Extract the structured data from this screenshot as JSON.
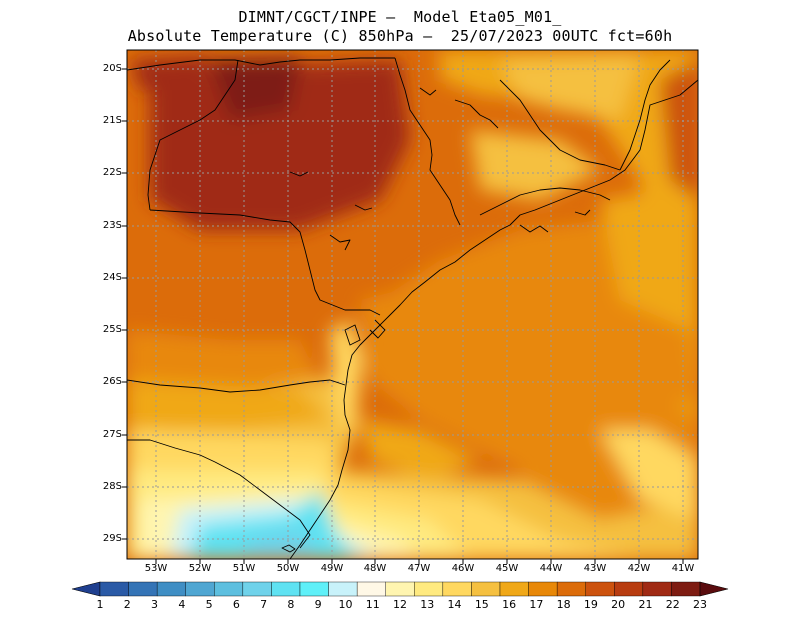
{
  "title_line1": "DIMNT/CGCT/INPE –  Model Eta05_M01_",
  "title_line2": "Absolute Temperature (C) 850hPa –  25/07/2023 00UTC fct=60h",
  "lat_labels": [
    "20S",
    "21S",
    "22S",
    "23S",
    "24S",
    "25S",
    "26S",
    "27S",
    "28S",
    "29S"
  ],
  "lon_labels": [
    "53W",
    "52W",
    "51W",
    "50W",
    "49W",
    "48W",
    "47W",
    "46W",
    "45W",
    "44W",
    "43W",
    "42W",
    "41W"
  ],
  "colorbar": {
    "labels": [
      "1",
      "2",
      "3",
      "4",
      "5",
      "6",
      "7",
      "8",
      "9",
      "10",
      "11",
      "12",
      "13",
      "14",
      "15",
      "16",
      "17",
      "18",
      "19",
      "20",
      "21",
      "22",
      "23"
    ],
    "colors": [
      "#1f3f8f",
      "#2a5aa6",
      "#3474b6",
      "#3f8ec4",
      "#4fa6d2",
      "#5dbfdf",
      "#6fd2ea",
      "#5fe2f2",
      "#5ff0f8",
      "#c8f2fa",
      "#fff8e6",
      "#fff5b0",
      "#ffea80",
      "#ffd860",
      "#f5c040",
      "#f0a818",
      "#e88808",
      "#dc6c0a",
      "#cc520e",
      "#b83c10",
      "#a02a14",
      "#7e1c12",
      "#5a0c0e"
    ]
  }
}
